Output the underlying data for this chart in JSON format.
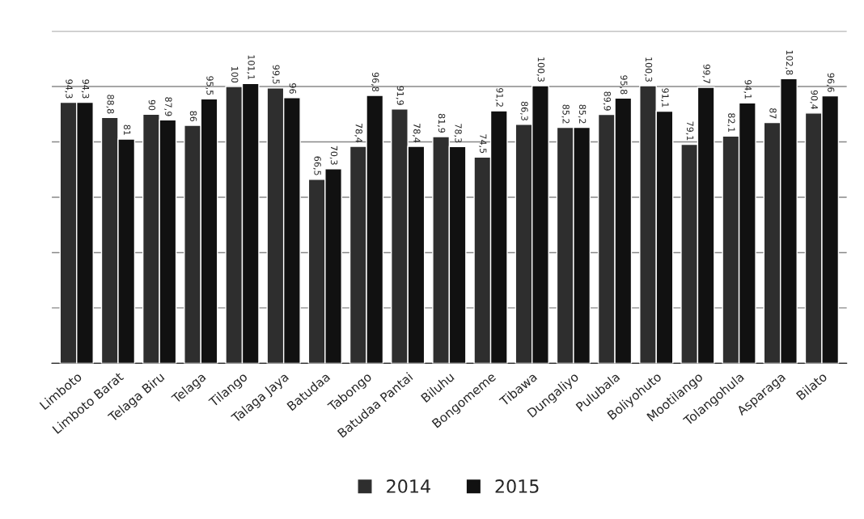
{
  "chart_data": {
    "type": "bar",
    "categories": [
      "Limboto",
      "Limboto Barat",
      "Telaga Biru",
      "Telaga",
      "Tilango",
      "Talaga Jaya",
      "Batudaa",
      "Tabongo",
      "Batudaa Pantai",
      "Biluhu",
      "Bongomeme",
      "Tibawa",
      "Dungaliyo",
      "Pulubala",
      "Boliyohuto",
      "Mootilango",
      "Tolangohula",
      "Asparaga",
      "Bilato"
    ],
    "series": [
      {
        "name": "2014",
        "color": "#2e2e2e",
        "values": [
          94.3,
          88.8,
          90,
          86,
          100,
          99.5,
          66.5,
          78.4,
          91.9,
          81.9,
          74.5,
          86.3,
          85.2,
          89.9,
          100.3,
          79.1,
          82.1,
          87,
          90.4
        ],
        "value_labels": [
          "94,3",
          "88,8",
          "90",
          "86",
          "100",
          "99,5",
          "66,5",
          "78,4",
          "91,9",
          "81,9",
          "74,5",
          "86,3",
          "85,2",
          "89,9",
          "100,3",
          "79,1",
          "82,1",
          "87",
          "90,4"
        ]
      },
      {
        "name": "2015",
        "color": "#111111",
        "values": [
          94.3,
          81,
          87.9,
          95.5,
          101.1,
          96,
          70.3,
          96.8,
          78.4,
          78.3,
          91.2,
          100.3,
          85.2,
          95.8,
          91.1,
          99.7,
          94.1,
          102.8,
          96.6
        ],
        "value_labels": [
          "94,3",
          "81",
          "87,9",
          "95,5",
          "101,1",
          "96",
          "70,3",
          "96,8",
          "78,4",
          "78,3",
          "91,2",
          "100,3",
          "85,2",
          "95,8",
          "91,1",
          "99,7",
          "94,1",
          "102,8",
          "96,6"
        ]
      }
    ],
    "ylim": [
      0,
      120
    ],
    "yticks": [
      {
        "value": 0,
        "label": null
      },
      {
        "value": 20,
        "label": null
      },
      {
        "value": 40,
        "label": null
      },
      {
        "value": 60,
        "label": null
      },
      {
        "value": 80,
        "label": null
      },
      {
        "value": 100,
        "label": null
      },
      {
        "value": 120,
        "label": null
      }
    ],
    "tick_labels": "x",
    "grid": "y",
    "legend": "bottom"
  }
}
